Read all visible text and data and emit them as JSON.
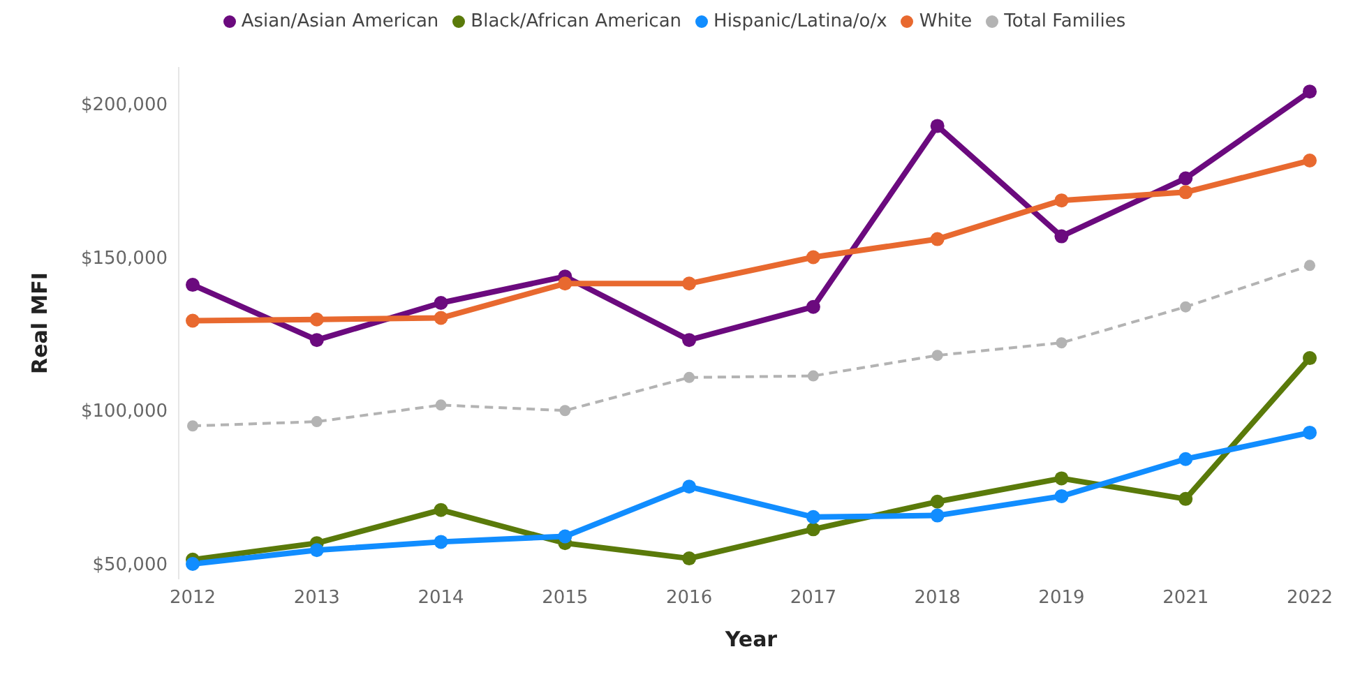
{
  "chart_data": {
    "type": "line",
    "xlabel": "Year",
    "ylabel": "Real MFI",
    "categories": [
      "2012",
      "2013",
      "2014",
      "2015",
      "2016",
      "2017",
      "2018",
      "2019",
      "2021",
      "2022"
    ],
    "series": [
      {
        "name": "Asian/Asian American",
        "color": "#6b0a7e",
        "values": [
          141000,
          123000,
          135100,
          143700,
          123000,
          133800,
          192800,
          156800,
          175700,
          204000
        ]
      },
      {
        "name": "Black/African American",
        "color": "#5a7a0a",
        "values": [
          51400,
          56800,
          67600,
          56800,
          51800,
          61300,
          70300,
          77900,
          71200,
          117100
        ]
      },
      {
        "name": "Hispanic/Latina/o/x",
        "color": "#118dff",
        "values": [
          50000,
          54500,
          57200,
          59000,
          75200,
          65300,
          65800,
          72100,
          84200,
          92800
        ]
      },
      {
        "name": "White",
        "color": "#e8692f",
        "values": [
          129300,
          129700,
          130200,
          141400,
          141400,
          150000,
          155900,
          168500,
          171200,
          181500
        ]
      },
      {
        "name": "Total Families",
        "color": "#b3b3b3",
        "line_style": "dashed",
        "values": [
          95000,
          96400,
          101800,
          100000,
          110800,
          111300,
          118000,
          122100,
          133800,
          147300
        ]
      }
    ],
    "yticks": [
      {
        "value": 50000,
        "label": "$50,000"
      },
      {
        "value": 100000,
        "label": "$100,000"
      },
      {
        "value": 150000,
        "label": "$150,000"
      },
      {
        "value": 200000,
        "label": "$200,000"
      }
    ],
    "ylim": [
      45000,
      212000
    ],
    "grid": false,
    "legend": "top",
    "marker": "circle",
    "line_style": "solid"
  }
}
